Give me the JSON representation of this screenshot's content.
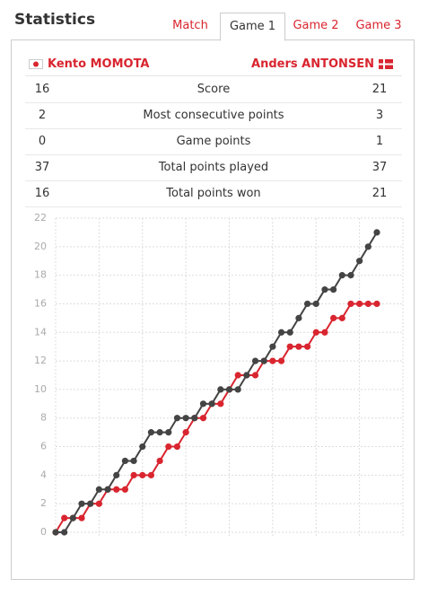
{
  "header": {
    "title": "Statistics"
  },
  "tabs": [
    "Match",
    "Game 1",
    "Game 2",
    "Game 3"
  ],
  "active_tab": 1,
  "players": {
    "left": "Kento MOMOTA",
    "right": "Anders ANTONSEN"
  },
  "stats": [
    {
      "left": 16,
      "label": "Score",
      "right": 21
    },
    {
      "left": 2,
      "label": "Most consecutive points",
      "right": 3
    },
    {
      "left": 0,
      "label": "Game points",
      "right": 1
    },
    {
      "left": 37,
      "label": "Total points played",
      "right": 37
    },
    {
      "left": 16,
      "label": "Total points won",
      "right": 21
    }
  ],
  "chart_data": {
    "type": "line",
    "x": [
      0,
      1,
      2,
      3,
      4,
      5,
      6,
      7,
      8,
      9,
      10,
      11,
      12,
      13,
      14,
      15,
      16,
      17,
      18,
      19,
      20,
      21,
      22,
      23,
      24,
      25,
      26,
      27,
      28,
      29,
      30,
      31,
      32,
      33,
      34,
      35,
      36,
      37
    ],
    "series": [
      {
        "color": "#d9252f",
        "values": [
          0,
          1,
          1,
          1,
          2,
          2,
          3,
          3,
          3,
          4,
          4,
          4,
          5,
          6,
          6,
          7,
          8,
          8,
          9,
          9,
          10,
          11,
          11,
          11,
          12,
          12,
          12,
          13,
          13,
          13,
          14,
          14,
          15,
          15,
          16,
          16,
          16,
          16
        ]
      },
      {
        "color": "#444444",
        "values": [
          0,
          0,
          1,
          2,
          2,
          3,
          3,
          4,
          5,
          5,
          6,
          7,
          7,
          7,
          8,
          8,
          8,
          9,
          9,
          10,
          10,
          10,
          11,
          12,
          12,
          13,
          14,
          14,
          15,
          16,
          16,
          17,
          17,
          18,
          18,
          19,
          20,
          21
        ]
      }
    ],
    "xlim": [
      0,
      40
    ],
    "xticks": [
      0,
      5,
      10,
      15,
      20,
      25,
      30,
      35,
      40
    ],
    "ylim": [
      0,
      22
    ],
    "yticks": [
      0,
      2,
      4,
      6,
      8,
      10,
      12,
      14,
      16,
      18,
      20,
      22
    ],
    "grid": true
  }
}
